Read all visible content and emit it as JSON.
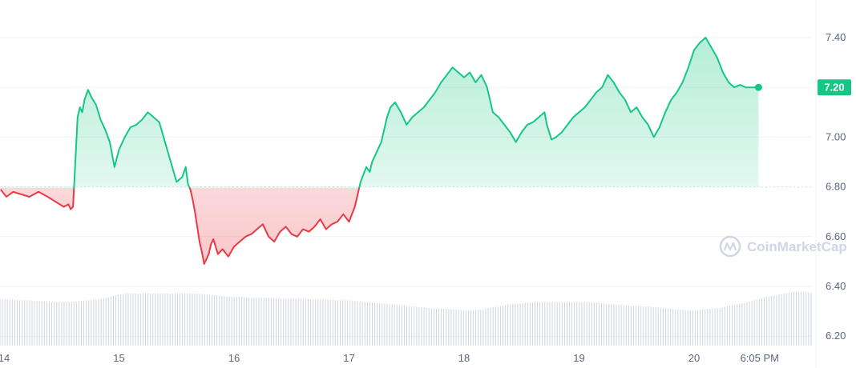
{
  "chart_data": {
    "type": "line",
    "baseline": 6.8,
    "ylim": [
      6.2,
      7.5
    ],
    "y_ticks": [
      6.2,
      6.4,
      6.6,
      6.8,
      7.0,
      7.2,
      7.4
    ],
    "y_tick_labels": [
      "6.20",
      "6.40",
      "6.60",
      "6.80",
      "7.00",
      "7.20",
      "7.40"
    ],
    "x_ticks": [
      {
        "value": 14,
        "label": "14"
      },
      {
        "value": 15,
        "label": "15"
      },
      {
        "value": 16,
        "label": "16"
      },
      {
        "value": 17,
        "label": "17"
      },
      {
        "value": 18,
        "label": "18"
      },
      {
        "value": 19,
        "label": "19"
      },
      {
        "value": 20,
        "label": "20"
      },
      {
        "value": 20.57,
        "label": "6:05 PM"
      }
    ],
    "last_price_label": "7.20",
    "series": [
      {
        "x": [
          13.97,
          14.02,
          14.08,
          14.15,
          14.22,
          14.3,
          14.38,
          14.45,
          14.52,
          14.56,
          14.58,
          14.6,
          14.62,
          14.64,
          14.66,
          14.68,
          14.7,
          14.73,
          14.76,
          14.8,
          14.84,
          14.88,
          14.92,
          14.96,
          15.0,
          15.05,
          15.1,
          15.15,
          15.2,
          15.25,
          15.3,
          15.35,
          15.4,
          15.45,
          15.5,
          15.55,
          15.58,
          15.6,
          15.62,
          15.64,
          15.66,
          15.68,
          15.7,
          15.72,
          15.74,
          15.76,
          15.78,
          15.8,
          15.82,
          15.84,
          15.86,
          15.9,
          15.95,
          16.0,
          16.05,
          16.1,
          16.15,
          16.2,
          16.25,
          16.3,
          16.35,
          16.4,
          16.45,
          16.5,
          16.55,
          16.6,
          16.65,
          16.7,
          16.75,
          16.8,
          16.85,
          16.9,
          16.95,
          17.0,
          17.05,
          17.1,
          17.15,
          17.18,
          17.2,
          17.22,
          17.24,
          17.26,
          17.28,
          17.3,
          17.33,
          17.36,
          17.4,
          17.45,
          17.5,
          17.55,
          17.6,
          17.65,
          17.7,
          17.75,
          17.8,
          17.85,
          17.9,
          17.95,
          18.0,
          18.05,
          18.1,
          18.15,
          18.2,
          18.25,
          18.3,
          18.35,
          18.4,
          18.45,
          18.5,
          18.55,
          18.6,
          18.65,
          18.7,
          18.72,
          18.74,
          18.76,
          18.8,
          18.85,
          18.9,
          18.95,
          19.0,
          19.05,
          19.1,
          19.15,
          19.2,
          19.25,
          19.3,
          19.35,
          19.4,
          19.45,
          19.5,
          19.55,
          19.6,
          19.65,
          19.7,
          19.75,
          19.8,
          19.85,
          19.9,
          19.95,
          20.0,
          20.05,
          20.1,
          20.15,
          20.2,
          20.25,
          20.3,
          20.35,
          20.4,
          20.45,
          20.5,
          20.52,
          20.54,
          20.56
        ],
        "y": [
          6.79,
          6.76,
          6.78,
          6.77,
          6.76,
          6.78,
          6.76,
          6.74,
          6.72,
          6.73,
          6.71,
          6.72,
          6.9,
          7.08,
          7.12,
          7.1,
          7.15,
          7.19,
          7.16,
          7.13,
          7.07,
          7.03,
          6.98,
          6.88,
          6.95,
          7.0,
          7.04,
          7.05,
          7.07,
          7.1,
          7.08,
          7.06,
          6.98,
          6.9,
          6.82,
          6.84,
          6.88,
          6.81,
          6.79,
          6.75,
          6.7,
          6.64,
          6.58,
          6.54,
          6.49,
          6.51,
          6.53,
          6.57,
          6.59,
          6.56,
          6.53,
          6.55,
          6.52,
          6.56,
          6.58,
          6.6,
          6.61,
          6.63,
          6.65,
          6.6,
          6.58,
          6.62,
          6.64,
          6.61,
          6.6,
          6.63,
          6.62,
          6.64,
          6.67,
          6.63,
          6.65,
          6.66,
          6.69,
          6.66,
          6.72,
          6.82,
          6.88,
          6.86,
          6.9,
          6.92,
          6.94,
          6.96,
          6.98,
          7.02,
          7.08,
          7.12,
          7.14,
          7.1,
          7.05,
          7.08,
          7.1,
          7.12,
          7.15,
          7.18,
          7.22,
          7.25,
          7.28,
          7.26,
          7.24,
          7.26,
          7.22,
          7.25,
          7.2,
          7.1,
          7.08,
          7.05,
          7.02,
          6.98,
          7.02,
          7.05,
          7.06,
          7.08,
          7.1,
          7.05,
          7.02,
          6.99,
          7.0,
          7.02,
          7.05,
          7.08,
          7.1,
          7.12,
          7.15,
          7.18,
          7.2,
          7.25,
          7.22,
          7.18,
          7.15,
          7.1,
          7.12,
          7.08,
          7.05,
          7.0,
          7.04,
          7.1,
          7.15,
          7.18,
          7.22,
          7.28,
          7.35,
          7.38,
          7.4,
          7.36,
          7.32,
          7.26,
          7.22,
          7.2,
          7.21,
          7.2,
          7.2,
          7.2,
          7.2,
          7.2
        ]
      }
    ],
    "volume": [
      0.55,
      0.55,
      0.54,
      0.54,
      0.53,
      0.53,
      0.52,
      0.52,
      0.52,
      0.53,
      0.54,
      0.55,
      0.57,
      0.6,
      0.62,
      0.62,
      0.62,
      0.62,
      0.62,
      0.62,
      0.62,
      0.62,
      0.62,
      0.61,
      0.6,
      0.59,
      0.58,
      0.58,
      0.57,
      0.57,
      0.57,
      0.56,
      0.56,
      0.56,
      0.56,
      0.55,
      0.55,
      0.55,
      0.54,
      0.54,
      0.53,
      0.52,
      0.51,
      0.5,
      0.49,
      0.48,
      0.47,
      0.46,
      0.45,
      0.44,
      0.44,
      0.43,
      0.42,
      0.42,
      0.43,
      0.45,
      0.47,
      0.49,
      0.5,
      0.51,
      0.52,
      0.52,
      0.52,
      0.52,
      0.52,
      0.52,
      0.52,
      0.51,
      0.5,
      0.49,
      0.48,
      0.47,
      0.47,
      0.46,
      0.45,
      0.44,
      0.43,
      0.42,
      0.42,
      0.43,
      0.44,
      0.45,
      0.48,
      0.5,
      0.52,
      0.55,
      0.58,
      0.6,
      0.62,
      0.64,
      0.64,
      0.63
    ]
  },
  "watermark": {
    "text": "CoinMarketCap"
  },
  "colors": {
    "up": "#16c784",
    "down": "#ea3943",
    "grid": "#eff2f5",
    "baseline": "#cfd6e4",
    "volume": "#a6b0c3",
    "label_bg": "#16c784",
    "axis_text": "#58667e"
  }
}
